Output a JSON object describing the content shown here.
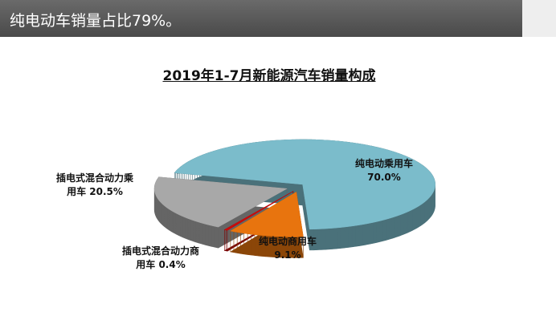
{
  "header": "纯电动车销量占比79%。",
  "chart_data": {
    "type": "pie",
    "title": "2019年1-7月新能源汽车销量构成",
    "categories": [
      "纯电动乘用车",
      "纯电动商用车",
      "插电式混合动力商用车",
      "插电式混合动力乘用车"
    ],
    "values": [
      70.0,
      9.1,
      0.4,
      20.5
    ],
    "value_labels": [
      "70.0%",
      "9.1%",
      "0.4%",
      "20.5%"
    ],
    "colors": [
      "#7bbccb",
      "#e8740e",
      "#cc0a0a",
      "#a8a8a8"
    ]
  }
}
